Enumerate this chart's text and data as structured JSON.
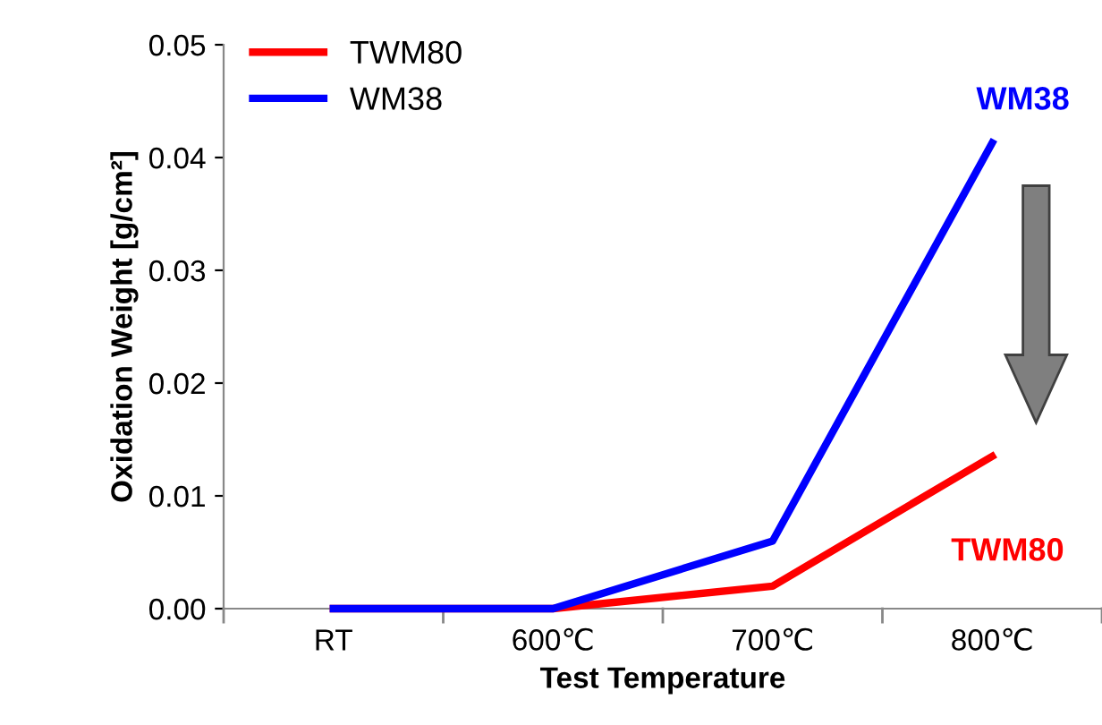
{
  "chart_data": {
    "type": "line",
    "xlabel": "Test Temperature",
    "ylabel": "Oxidation Weight [g/cm²]",
    "categories": [
      "RT",
      "600℃",
      "700℃",
      "800℃"
    ],
    "series": [
      {
        "name": "TWM80",
        "color": "#ff0000",
        "values": [
          0,
          0,
          0.002,
          0.0135
        ]
      },
      {
        "name": "WM38",
        "color": "#0000ff",
        "values": [
          0,
          0,
          0.006,
          0.0413
        ]
      }
    ],
    "annotations": [
      {
        "text": "WM38",
        "x": "800℃",
        "y": 0.0413
      },
      {
        "text": "TWM80",
        "x": "800℃",
        "y": 0.0135
      }
    ],
    "ylim": [
      0,
      0.05
    ],
    "yticks": [
      {
        "value": 0,
        "label": "0.00"
      },
      {
        "value": 0.01,
        "label": "0.01"
      },
      {
        "value": 0.02,
        "label": "0.02"
      },
      {
        "value": 0.03,
        "label": "0.03"
      },
      {
        "value": 0.04,
        "label": "0.04"
      },
      {
        "value": 0.05,
        "label": "0.05"
      }
    ],
    "legend": "top left",
    "grid": false,
    "marker": "none",
    "line_style": "solid"
  }
}
